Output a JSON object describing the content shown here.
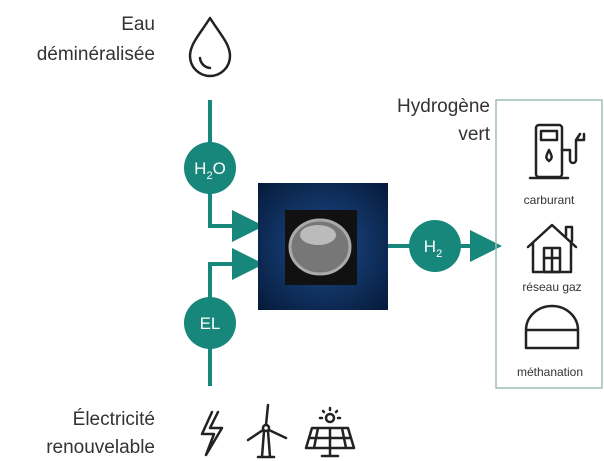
{
  "input_water": {
    "lines": [
      "Eau",
      "déminéralisée"
    ]
  },
  "input_electricity": {
    "lines": [
      "Électricité",
      "renouvelable"
    ]
  },
  "nodes": [
    {
      "base": "H",
      "sub": "2",
      "tail": "O"
    },
    {
      "base": "EL"
    },
    {
      "base": "H",
      "sub": "2"
    }
  ],
  "output": {
    "title_lines": [
      "Hydrogène",
      "vert"
    ],
    "uses": [
      "carburant",
      "réseau gaz",
      "méthanation"
    ]
  }
}
